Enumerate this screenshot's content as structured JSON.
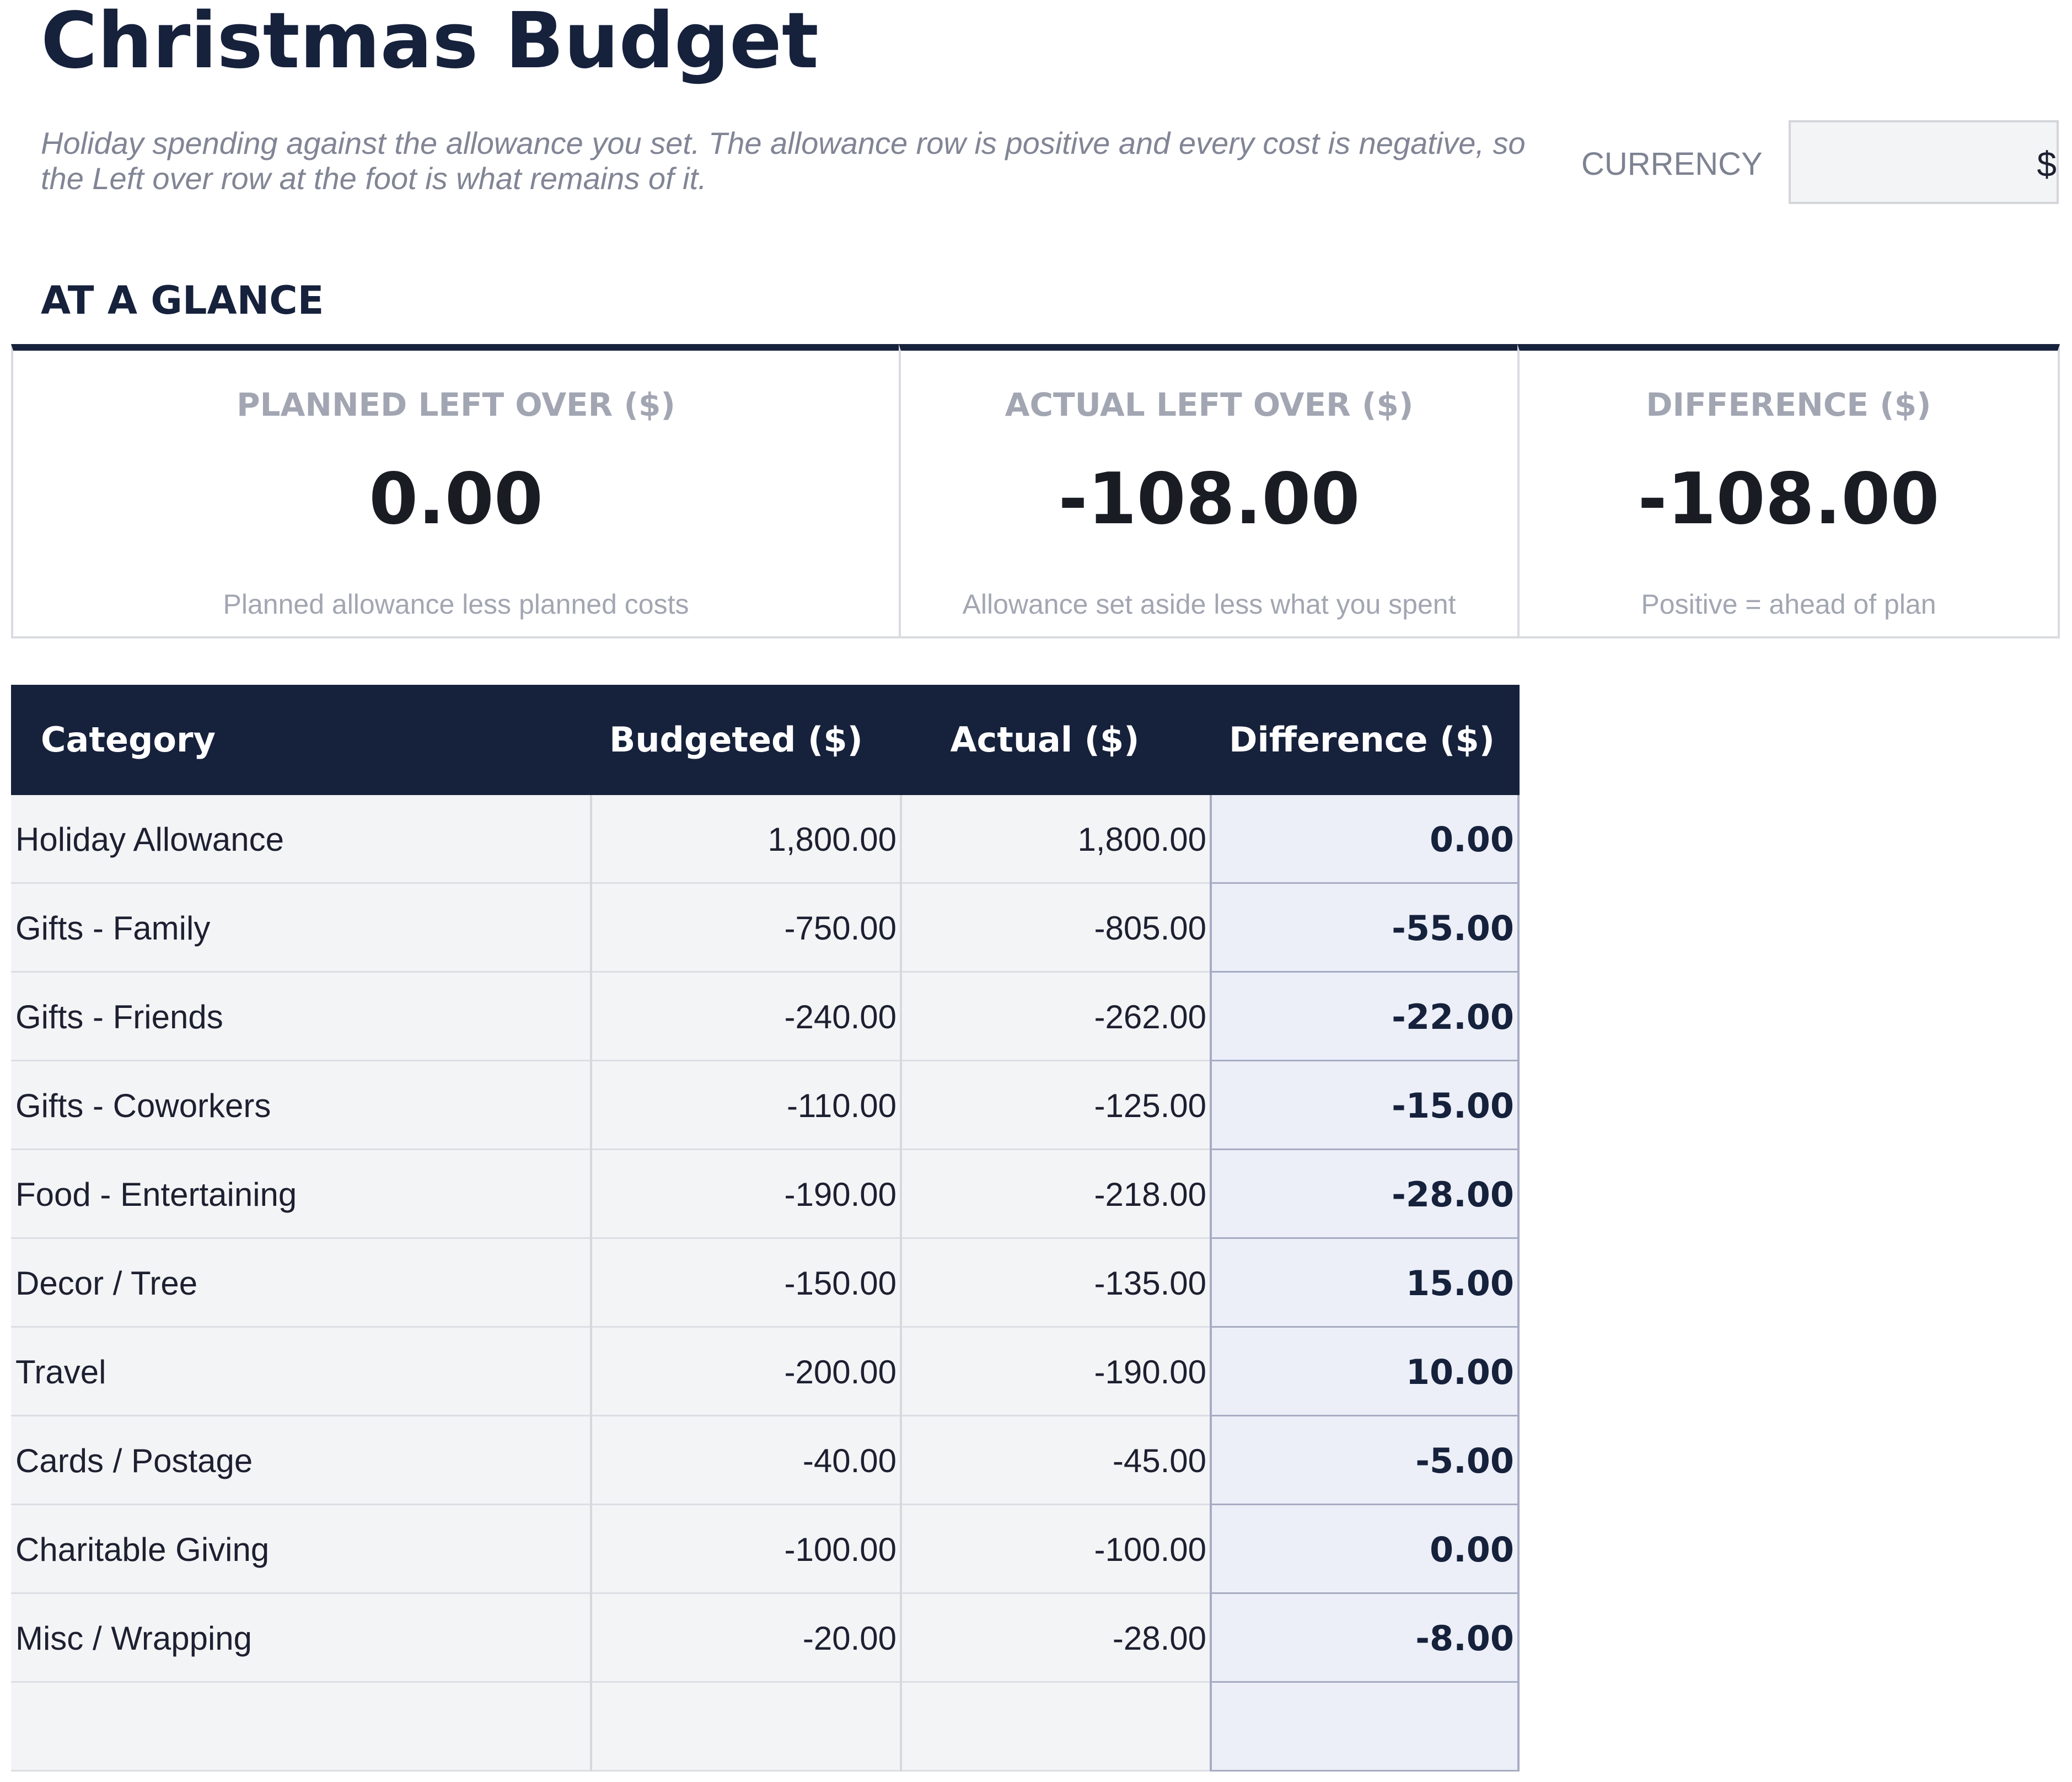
{
  "header": {
    "title": "Christmas Budget",
    "subtitle": "Holiday spending against the allowance you set. The allowance row is positive and every cost is negative, so the Left over row at the foot is what remains of it.",
    "currency_label": "CURRENCY",
    "currency_value": "$"
  },
  "glance": {
    "heading": "AT A GLANCE",
    "cards": [
      {
        "label": "PLANNED LEFT OVER ($)",
        "value": "0.00",
        "note": "Planned allowance less planned costs"
      },
      {
        "label": "ACTUAL LEFT OVER ($)",
        "value": "-108.00",
        "note": "Allowance set aside less what you spent"
      },
      {
        "label": "DIFFERENCE ($)",
        "value": "-108.00",
        "note": "Positive = ahead of plan"
      }
    ]
  },
  "table": {
    "headers": {
      "category": "Category",
      "budgeted": "Budgeted ($)",
      "actual": "Actual ($)",
      "difference": "Difference ($)"
    },
    "rows": [
      {
        "category": "Holiday Allowance",
        "budgeted": "1,800.00",
        "actual": "1,800.00",
        "difference": "0.00"
      },
      {
        "category": "Gifts - Family",
        "budgeted": "-750.00",
        "actual": "-805.00",
        "difference": "-55.00"
      },
      {
        "category": "Gifts - Friends",
        "budgeted": "-240.00",
        "actual": "-262.00",
        "difference": "-22.00"
      },
      {
        "category": "Gifts - Coworkers",
        "budgeted": "-110.00",
        "actual": "-125.00",
        "difference": "-15.00"
      },
      {
        "category": "Food - Entertaining",
        "budgeted": "-190.00",
        "actual": "-218.00",
        "difference": "-28.00"
      },
      {
        "category": "Decor / Tree",
        "budgeted": "-150.00",
        "actual": "-135.00",
        "difference": "15.00"
      },
      {
        "category": "Travel",
        "budgeted": "-200.00",
        "actual": "-190.00",
        "difference": "10.00"
      },
      {
        "category": "Cards / Postage",
        "budgeted": "-40.00",
        "actual": "-45.00",
        "difference": "-5.00"
      },
      {
        "category": "Charitable Giving",
        "budgeted": "-100.00",
        "actual": "-100.00",
        "difference": "0.00"
      },
      {
        "category": "Misc / Wrapping",
        "budgeted": "-20.00",
        "actual": "-28.00",
        "difference": "-8.00"
      },
      {
        "category": "",
        "budgeted": "",
        "actual": "",
        "difference": ""
      }
    ]
  }
}
